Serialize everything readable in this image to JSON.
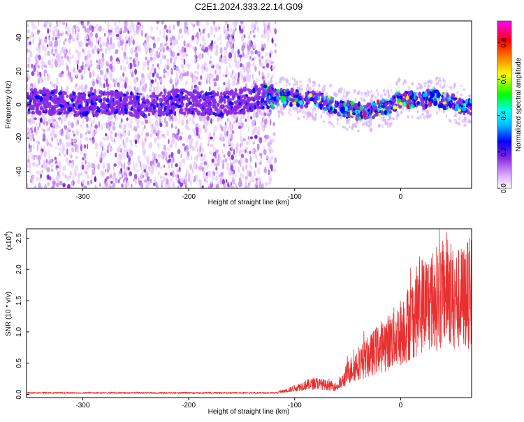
{
  "chart_data": [
    {
      "type": "heatmap",
      "title": "C2E1.2024.333.22.14.G09",
      "xlabel": "Height of straight line (km)",
      "ylabel": "Frequency (Hz)",
      "xlim": [
        -353,
        67
      ],
      "ylim": [
        -50,
        50
      ],
      "x_ticks": [
        -300,
        -200,
        -100,
        0
      ],
      "x_tick_labels": [
        "-300",
        "-200",
        "-100",
        "0"
      ],
      "y_ticks": [
        -40,
        -20,
        0,
        20,
        40
      ],
      "y_tick_labels": [
        "-40",
        "-20",
        "0",
        "20",
        "40"
      ],
      "colorbar": {
        "label": "Normalized spectral amplitude",
        "range": [
          0,
          0.92
        ],
        "ticks": [
          0.0,
          0.2,
          0.4,
          0.6,
          0.8
        ],
        "tick_labels": [
          "0.0",
          "0.2",
          "0.4",
          "0.6",
          "0.8"
        ],
        "colors": [
          "#ffffff",
          "#d9a8ff",
          "#8a2be2",
          "#0000ff",
          "#00bfff",
          "#00ffff",
          "#00ff00",
          "#ffff00",
          "#ff8000",
          "#ff0000",
          "#ff00ff"
        ]
      },
      "ridge": {
        "x": [
          -350,
          -320,
          -300,
          -270,
          -240,
          -210,
          -190,
          -170,
          -150,
          -130,
          -120,
          -110,
          -100,
          -90,
          -80,
          -70,
          -60,
          -50,
          -40,
          -30,
          -20,
          -10,
          0,
          10,
          20,
          30,
          40,
          50,
          60,
          67
        ],
        "y": [
          2,
          1,
          0,
          1,
          -1,
          2,
          1,
          0,
          2,
          5,
          5,
          4,
          4,
          3,
          3,
          1,
          -2,
          -3,
          -4,
          -4,
          -2,
          -1,
          4,
          3,
          2,
          5,
          3,
          1,
          -1,
          -2
        ]
      },
      "grid": false
    },
    {
      "type": "line",
      "xlabel": "Height of straight line (km)",
      "ylabel": "SNR (10 * v/v)",
      "y_multiplier_label": "(x10",
      "y_multiplier_exp": "4",
      "xlim": [
        -353,
        67
      ],
      "ylim": [
        -0.05,
        2.65
      ],
      "x_ticks": [
        -300,
        -200,
        -100,
        0
      ],
      "x_tick_labels": [
        "-300",
        "-200",
        "-100",
        "0"
      ],
      "y_ticks": [
        0.0,
        0.5,
        1.0,
        1.5,
        2.0,
        2.5
      ],
      "y_tick_labels": [
        "0.0",
        "0.5",
        "1.0",
        "1.5",
        "2.0",
        "2.5"
      ],
      "series_color": "#e83030",
      "envelope": {
        "x": [
          -353,
          -300,
          -250,
          -200,
          -150,
          -120,
          -110,
          -100,
          -90,
          -80,
          -70,
          -60,
          -55,
          -50,
          -40,
          -30,
          -20,
          -10,
          0,
          10,
          20,
          30,
          40,
          45,
          50,
          60,
          67
        ],
        "y": [
          0.02,
          0.02,
          0.02,
          0.03,
          0.03,
          0.03,
          0.05,
          0.1,
          0.15,
          0.18,
          0.15,
          0.12,
          0.2,
          0.35,
          0.5,
          0.6,
          0.75,
          0.85,
          1.0,
          1.2,
          1.45,
          1.5,
          1.6,
          1.75,
          1.5,
          1.55,
          1.65
        ]
      },
      "grid": false
    }
  ]
}
